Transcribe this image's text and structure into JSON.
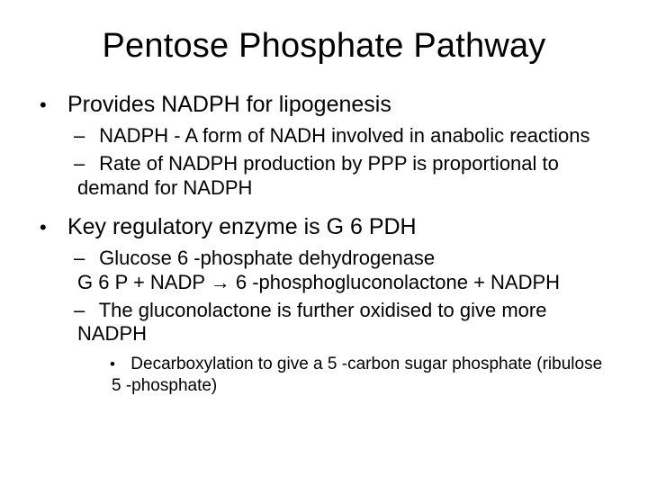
{
  "slide": {
    "title": "Pentose Phosphate Pathway",
    "bullets": [
      {
        "text": "Provides NADPH for lipogenesis",
        "sub": [
          {
            "text": "NADPH - A form of NADH involved in anabolic reactions"
          },
          {
            "text": "Rate of NADPH production by PPP is proportional to demand for NADPH"
          }
        ]
      },
      {
        "text": "Key regulatory enzyme is G 6 PDH",
        "sub": [
          {
            "text": "Glucose 6 -phosphate dehydrogenase\nG 6 P + NADP → 6 -phosphogluconolactone + NADPH"
          },
          {
            "text": "The gluconolactone is further oxidised to give more NADPH",
            "sub": [
              {
                "text": "Decarboxylation to give a 5 -carbon sugar phosphate (ribulose 5 -phosphate)"
              }
            ]
          }
        ]
      }
    ]
  },
  "style": {
    "background_color": "#ffffff",
    "text_color": "#000000",
    "title_fontsize": 38,
    "level1_fontsize": 25,
    "level2_fontsize": 22,
    "level3_fontsize": 19,
    "font_family": "Arial"
  }
}
